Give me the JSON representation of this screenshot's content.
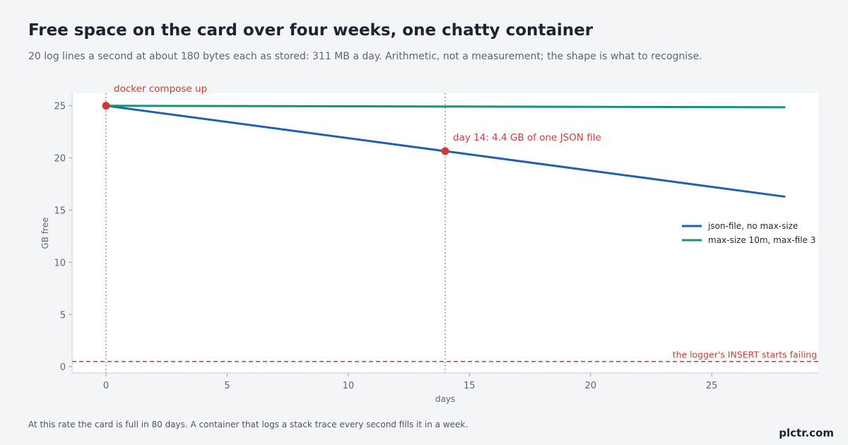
{
  "header": {
    "title": "Free space on the card over four weeks, one chatty container",
    "subtitle": "20 log lines a second at about 180 bytes each as stored: 311 MB a day. Arithmetic, not a measurement; the shape is what to recognise."
  },
  "footer": {
    "note": "At this rate the card is full in 80 days. A container that logs a stack trace every second fills it in a week.",
    "brand": "plctr.com"
  },
  "chart_data": {
    "type": "line",
    "xlabel": "days",
    "ylabel": "GB free",
    "xlim": [
      -1.4,
      29.4
    ],
    "ylim": [
      -0.6,
      26.2
    ],
    "xticks": [
      0,
      5,
      10,
      15,
      20,
      25
    ],
    "yticks": [
      0,
      5,
      10,
      15,
      20,
      25
    ],
    "grid": false,
    "legend_position": "center-right",
    "series": [
      {
        "name": "json-file, no max-size",
        "color": "#2160b0",
        "x": [
          0,
          28
        ],
        "y": [
          25.0,
          16.3
        ]
      },
      {
        "name": "max-size 10m, max-file 3",
        "color": "#1a8f7a",
        "x": [
          0,
          28
        ],
        "y": [
          25.0,
          24.85
        ]
      }
    ],
    "vlines": [
      0,
      14
    ],
    "hline": {
      "y": 0.5,
      "label": "the logger's INSERT starts failing",
      "color": "#d13a3a"
    },
    "points": [
      {
        "x": 0,
        "y": 25.0,
        "label": "docker compose up"
      },
      {
        "x": 14,
        "y": 20.65,
        "label": "day 14: 4.4 GB of one JSON file"
      }
    ],
    "accent_color": "#d13a3a"
  }
}
